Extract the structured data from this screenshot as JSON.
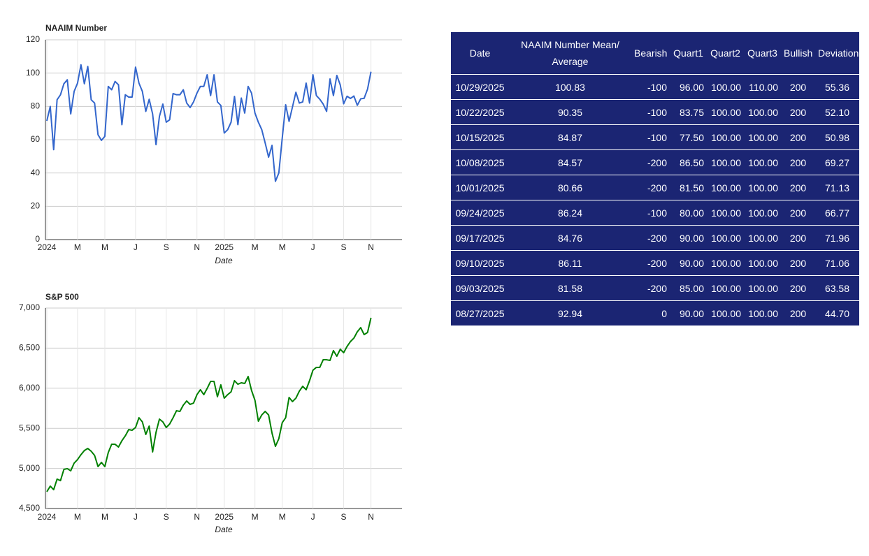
{
  "chart_data": [
    {
      "type": "line",
      "title": "NAAIM Number",
      "x_label": "Date",
      "categories": [
        "2024",
        null,
        null,
        null,
        null,
        null,
        null,
        null,
        null,
        "M",
        null,
        null,
        null,
        null,
        null,
        null,
        null,
        "M",
        null,
        null,
        null,
        null,
        null,
        null,
        null,
        null,
        "J",
        null,
        null,
        null,
        null,
        null,
        null,
        null,
        null,
        "S",
        null,
        null,
        null,
        null,
        null,
        null,
        null,
        null,
        "N",
        null,
        null,
        null,
        null,
        null,
        null,
        null,
        "2025",
        null,
        null,
        null,
        null,
        null,
        null,
        null,
        null,
        "M",
        null,
        null,
        null,
        null,
        null,
        null,
        null,
        "M",
        null,
        null,
        null,
        null,
        null,
        null,
        null,
        null,
        "J",
        null,
        null,
        null,
        null,
        null,
        null,
        null,
        null,
        "S",
        null,
        null,
        null,
        null,
        null,
        null,
        null,
        "N"
      ],
      "values": [
        71.3,
        80,
        54,
        84,
        87,
        93.6,
        96,
        75.5,
        89,
        94,
        105,
        93.6,
        104,
        84,
        82,
        63,
        59.6,
        62,
        92,
        90,
        95,
        93,
        69,
        87,
        85.6,
        85.6,
        103.6,
        94,
        89,
        77,
        84.3,
        75.5,
        57,
        74,
        81.4,
        70.5,
        72,
        87.7,
        87,
        87,
        90,
        82,
        79.3,
        82.7,
        88,
        92,
        92,
        99,
        86.5,
        99,
        82.7,
        80.6,
        64,
        66,
        70.5,
        86,
        69,
        85,
        76,
        92,
        88,
        76,
        70.5,
        66,
        58,
        49.5,
        56.6,
        35,
        40,
        61,
        81,
        71,
        79.7,
        88.5,
        82,
        82.7,
        94,
        82,
        99,
        86.5,
        84.3,
        81.4,
        77,
        96.5,
        86.5,
        98.6,
        92.94,
        81.58,
        86.11,
        84.76,
        86.24,
        80.66,
        84.57,
        84.87,
        90.35,
        100.83
      ],
      "color": "#3366cc",
      "ylim": [
        0,
        120
      ],
      "yticks": [
        0,
        20,
        40,
        60,
        80,
        100,
        120
      ],
      "grid": true
    },
    {
      "type": "line",
      "title": "S&P 500",
      "x_label": "Date",
      "categories": [
        "2024",
        null,
        null,
        null,
        null,
        null,
        null,
        null,
        null,
        "M",
        null,
        null,
        null,
        null,
        null,
        null,
        null,
        "M",
        null,
        null,
        null,
        null,
        null,
        null,
        null,
        null,
        "J",
        null,
        null,
        null,
        null,
        null,
        null,
        null,
        null,
        "S",
        null,
        null,
        null,
        null,
        null,
        null,
        null,
        null,
        "N",
        null,
        null,
        null,
        null,
        null,
        null,
        null,
        "2025",
        null,
        null,
        null,
        null,
        null,
        null,
        null,
        null,
        "M",
        null,
        null,
        null,
        null,
        null,
        null,
        null,
        "M",
        null,
        null,
        null,
        null,
        null,
        null,
        null,
        null,
        "J",
        null,
        null,
        null,
        null,
        null,
        null,
        null,
        null,
        "S",
        null,
        null,
        null,
        null,
        null,
        null,
        null,
        "N"
      ],
      "values": [
        4709,
        4779,
        4735,
        4866,
        4848,
        4988,
        4997,
        4970,
        5066,
        5110,
        5171,
        5223,
        5249,
        5214,
        5162,
        5023,
        5075,
        5023,
        5197,
        5301,
        5301,
        5267,
        5345,
        5406,
        5484,
        5476,
        5510,
        5632,
        5580,
        5423,
        5528,
        5206,
        5449,
        5615,
        5580,
        5510,
        5554,
        5632,
        5719,
        5711,
        5789,
        5841,
        5798,
        5815,
        5920,
        5981,
        5920,
        5998,
        6085,
        6085,
        5894,
        6042,
        5876,
        5920,
        5955,
        6094,
        6050,
        6068,
        6059,
        6146,
        5972,
        5850,
        5589,
        5667,
        5711,
        5667,
        5441,
        5275,
        5371,
        5571,
        5632,
        5885,
        5833,
        5876,
        5963,
        6024,
        5981,
        6094,
        6225,
        6260,
        6260,
        6355,
        6355,
        6347,
        6469,
        6399,
        6486,
        6443,
        6521,
        6582,
        6625,
        6704,
        6756,
        6669,
        6695,
        6878
      ],
      "color": "#008000",
      "ylim": [
        4500,
        7000
      ],
      "yticks": [
        {
          "value": 4500,
          "label": "4,500"
        },
        {
          "value": 5000,
          "label": "5,000"
        },
        {
          "value": 5500,
          "label": "5,500"
        },
        {
          "value": 6000,
          "label": "6,000"
        },
        {
          "value": 6500,
          "label": "6,500"
        },
        {
          "value": 7000,
          "label": "7,000"
        }
      ],
      "grid": true
    }
  ],
  "table": {
    "columns": [
      "Date",
      "NAAIM Number Mean/ Average",
      "Bearish",
      "Quart1",
      "Quart2",
      "Quart3",
      "Bullish",
      "Deviation"
    ],
    "rows": [
      [
        "10/29/2025",
        "100.83",
        "-100",
        "96.00",
        "100.00",
        "110.00",
        "200",
        "55.36"
      ],
      [
        "10/22/2025",
        "90.35",
        "-100",
        "83.75",
        "100.00",
        "100.00",
        "200",
        "52.10"
      ],
      [
        "10/15/2025",
        "84.87",
        "-100",
        "77.50",
        "100.00",
        "100.00",
        "200",
        "50.98"
      ],
      [
        "10/08/2025",
        "84.57",
        "-200",
        "86.50",
        "100.00",
        "100.00",
        "200",
        "69.27"
      ],
      [
        "10/01/2025",
        "80.66",
        "-200",
        "81.50",
        "100.00",
        "100.00",
        "200",
        "71.13"
      ],
      [
        "09/24/2025",
        "86.24",
        "-100",
        "80.00",
        "100.00",
        "100.00",
        "200",
        "66.77"
      ],
      [
        "09/17/2025",
        "84.76",
        "-200",
        "90.00",
        "100.00",
        "100.00",
        "200",
        "71.96"
      ],
      [
        "09/10/2025",
        "86.11",
        "-200",
        "90.00",
        "100.00",
        "100.00",
        "200",
        "71.06"
      ],
      [
        "09/03/2025",
        "81.58",
        "-200",
        "85.00",
        "100.00",
        "100.00",
        "200",
        "63.58"
      ],
      [
        "08/27/2025",
        "92.94",
        "0",
        "90.00",
        "100.00",
        "100.00",
        "200",
        "44.70"
      ]
    ]
  }
}
